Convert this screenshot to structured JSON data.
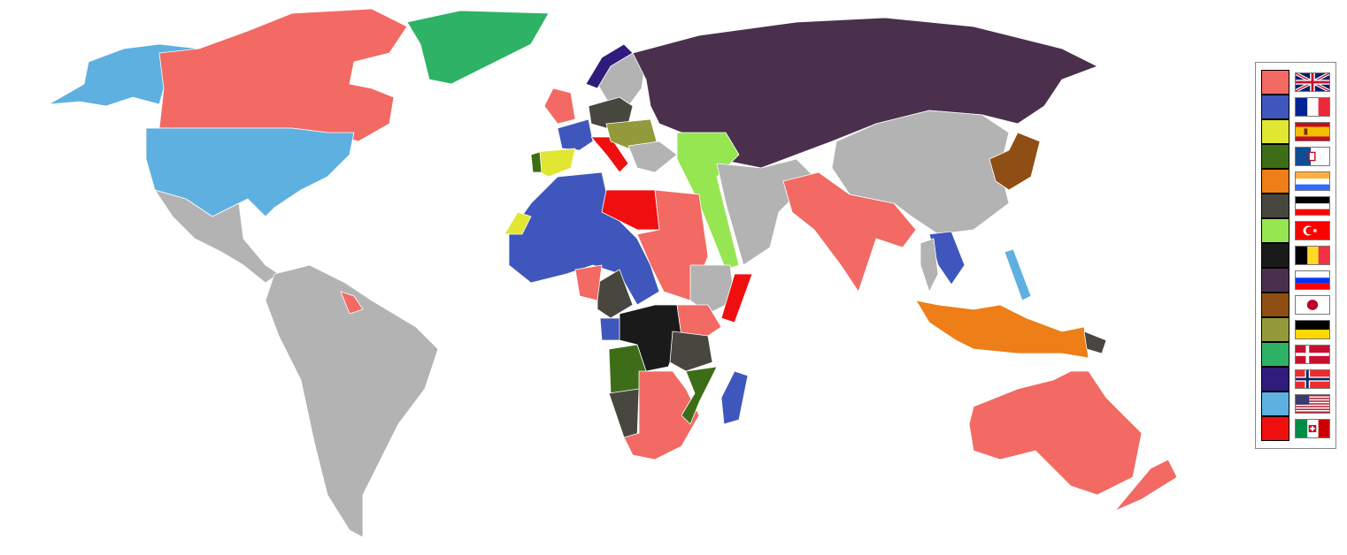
{
  "map": {
    "ocean_color": "#FFFFFF",
    "unclaimed_color": "#B3B3B3"
  },
  "legend": {
    "entries": [
      {
        "color": "#F26A63",
        "flag": "united-kingdom-flag-icon"
      },
      {
        "color": "#3F57BC",
        "flag": "france-flag-icon"
      },
      {
        "color": "#E1E632",
        "flag": "spain-flag-icon"
      },
      {
        "color": "#3D6E17",
        "flag": "portugal-flag-icon"
      },
      {
        "color": "#EE7E17",
        "flag": "netherlands-prinsenvlag-flag-icon"
      },
      {
        "color": "#47473F",
        "flag": "german-empire-flag-icon"
      },
      {
        "color": "#95E650",
        "flag": "ottoman-empire-flag-icon"
      },
      {
        "color": "#1A1A1A",
        "flag": "belgium-flag-icon"
      },
      {
        "color": "#4B304E",
        "flag": "russia-flag-icon"
      },
      {
        "color": "#8F4E14",
        "flag": "japan-flag-icon"
      },
      {
        "color": "#939A3C",
        "flag": "austria-hungary-flag-icon"
      },
      {
        "color": "#2EB266",
        "flag": "denmark-flag-icon"
      },
      {
        "color": "#301C7C",
        "flag": "norway-flag-icon"
      },
      {
        "color": "#5EB0E0",
        "flag": "united-states-flag-icon"
      },
      {
        "color": "#F00F0F",
        "flag": "italy-flag-icon"
      }
    ]
  }
}
